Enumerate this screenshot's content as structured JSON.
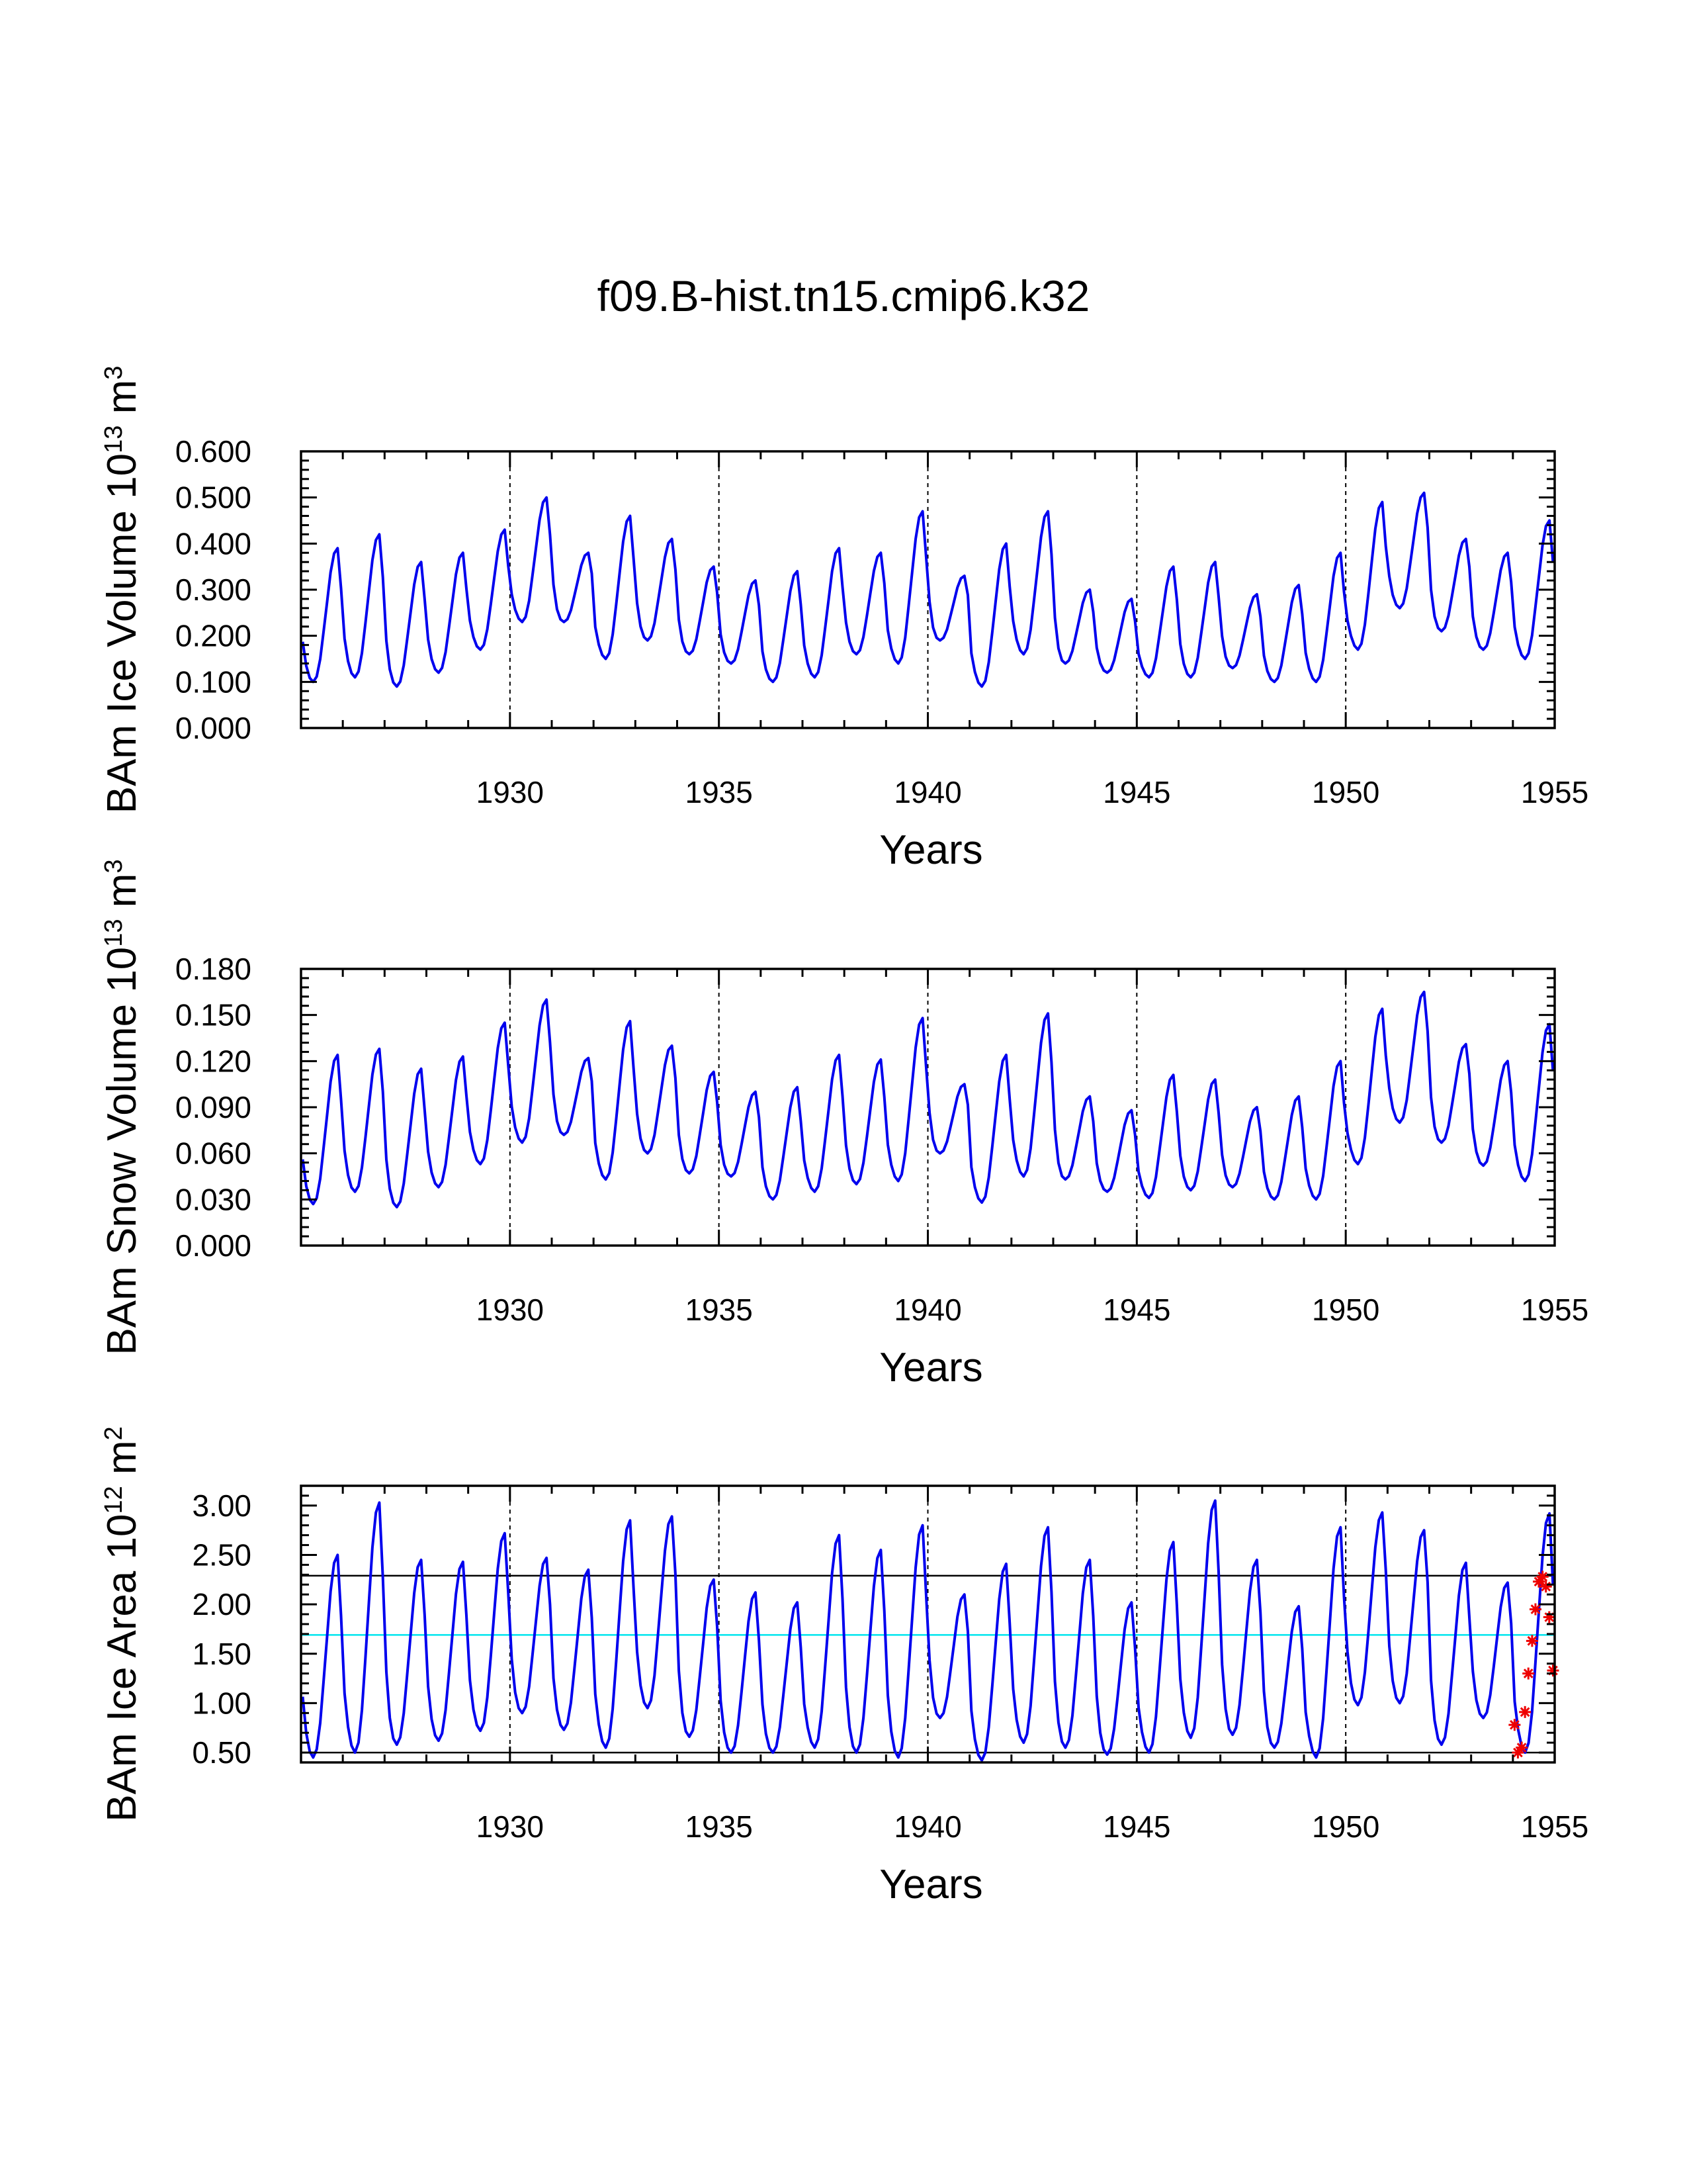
{
  "figure_title": "f09.B-hist.tn15.cmip6.k32",
  "colors": {
    "series": "#0000ee",
    "mean_line": "#00e5ee",
    "bound_line": "#000000",
    "marker": "#ee0000",
    "axis": "#000000"
  },
  "chart_data": [
    {
      "type": "line",
      "title": "",
      "ylabel": {
        "base": "BAm Ice Volume 10",
        "exp": "13",
        "unit": " m",
        "unit_exp": "3"
      },
      "xlabel": "Years",
      "xlim": [
        1925,
        1955
      ],
      "ylim": [
        0.0,
        0.6
      ],
      "yticks": [
        "0.000",
        "0.100",
        "0.200",
        "0.300",
        "0.400",
        "0.500",
        "0.600"
      ],
      "ytick_values": [
        0.0,
        0.1,
        0.2,
        0.3,
        0.4,
        0.5,
        0.6
      ],
      "xticks": [
        "1930",
        "1935",
        "1940",
        "1945",
        "1950",
        "1955"
      ],
      "xtick_values": [
        1930,
        1935,
        1940,
        1945,
        1950,
        1955
      ],
      "vlines": [
        1930,
        1935,
        1940,
        1945,
        1950
      ],
      "annual_min": [
        0.1,
        0.11,
        0.09,
        0.12,
        0.17,
        0.23,
        0.23,
        0.15,
        0.19,
        0.16,
        0.14,
        0.1,
        0.11,
        0.16,
        0.14,
        0.19,
        0.09,
        0.16,
        0.14,
        0.12,
        0.11,
        0.11,
        0.13,
        0.1,
        0.1,
        0.17,
        0.26,
        0.21,
        0.17,
        0.15
      ],
      "annual_max": [
        0.39,
        0.42,
        0.36,
        0.38,
        0.43,
        0.5,
        0.38,
        0.46,
        0.41,
        0.35,
        0.32,
        0.34,
        0.39,
        0.38,
        0.47,
        0.33,
        0.4,
        0.47,
        0.3,
        0.28,
        0.35,
        0.36,
        0.29,
        0.31,
        0.38,
        0.49,
        0.51,
        0.41,
        0.38,
        0.45
      ],
      "series": [
        {
          "name": "BAm Ice Volume",
          "color": "#0000ee"
        }
      ]
    },
    {
      "type": "line",
      "title": "",
      "ylabel": {
        "base": "BAm Snow Volume 10",
        "exp": "13",
        "unit": " m",
        "unit_exp": "3"
      },
      "xlabel": "Years",
      "xlim": [
        1925,
        1955
      ],
      "ylim": [
        0.0,
        0.18
      ],
      "yticks": [
        "0.000",
        "0.030",
        "0.060",
        "0.090",
        "0.120",
        "0.150",
        "0.180"
      ],
      "ytick_values": [
        0.0,
        0.03,
        0.06,
        0.09,
        0.12,
        0.15,
        0.18
      ],
      "xticks": [
        "1930",
        "1935",
        "1940",
        "1945",
        "1950",
        "1955"
      ],
      "xtick_values": [
        1930,
        1935,
        1940,
        1945,
        1950,
        1955
      ],
      "vlines": [
        1930,
        1935,
        1940,
        1945,
        1950
      ],
      "annual_min": [
        0.027,
        0.035,
        0.025,
        0.038,
        0.053,
        0.067,
        0.072,
        0.043,
        0.06,
        0.047,
        0.045,
        0.03,
        0.035,
        0.04,
        0.042,
        0.06,
        0.028,
        0.045,
        0.043,
        0.035,
        0.031,
        0.036,
        0.038,
        0.03,
        0.03,
        0.053,
        0.08,
        0.067,
        0.052,
        0.042
      ],
      "annual_max": [
        0.124,
        0.128,
        0.115,
        0.123,
        0.145,
        0.16,
        0.122,
        0.146,
        0.13,
        0.113,
        0.1,
        0.103,
        0.124,
        0.121,
        0.148,
        0.105,
        0.124,
        0.151,
        0.097,
        0.088,
        0.111,
        0.108,
        0.09,
        0.097,
        0.12,
        0.154,
        0.165,
        0.131,
        0.12,
        0.144
      ],
      "series": [
        {
          "name": "BAm Snow Volume",
          "color": "#0000ee"
        }
      ]
    },
    {
      "type": "line",
      "title": "",
      "ylabel": {
        "base": "BAm Ice Area 10",
        "exp": "12",
        "unit": " m",
        "unit_exp": "2"
      },
      "xlabel": "Years",
      "xlim": [
        1925,
        1955
      ],
      "ylim": [
        0.4,
        3.2
      ],
      "yticks": [
        "0.50",
        "1.00",
        "1.50",
        "2.00",
        "2.50",
        "3.00"
      ],
      "ytick_values": [
        0.5,
        1.0,
        1.5,
        2.0,
        2.5,
        3.0
      ],
      "xticks": [
        "1930",
        "1935",
        "1940",
        "1945",
        "1950",
        "1955"
      ],
      "xtick_values": [
        1930,
        1935,
        1940,
        1945,
        1950,
        1955
      ],
      "vlines": [
        1930,
        1935,
        1940,
        1945,
        1950
      ],
      "hlines": [
        {
          "y": 2.29,
          "kind": "upper"
        },
        {
          "y": 1.69,
          "kind": "mean"
        },
        {
          "y": 0.5,
          "kind": "lower"
        }
      ],
      "annual_min": [
        0.45,
        0.5,
        0.58,
        0.62,
        0.72,
        0.9,
        0.73,
        0.55,
        0.95,
        0.66,
        0.5,
        0.5,
        0.55,
        0.5,
        0.45,
        0.85,
        0.42,
        0.6,
        0.55,
        0.48,
        0.5,
        0.65,
        0.68,
        0.55,
        0.45,
        0.98,
        1.0,
        0.58,
        0.85,
        0.5
      ],
      "annual_max": [
        2.5,
        3.03,
        2.45,
        2.43,
        2.72,
        2.47,
        2.35,
        2.85,
        2.89,
        2.25,
        2.12,
        2.02,
        2.7,
        2.55,
        2.8,
        2.1,
        2.41,
        2.78,
        2.45,
        2.02,
        2.63,
        3.05,
        2.45,
        1.98,
        2.78,
        2.93,
        2.75,
        2.42,
        2.22,
        2.92
      ],
      "markers": [
        {
          "x": 1954.04,
          "y": 0.78
        },
        {
          "x": 1954.12,
          "y": 0.5
        },
        {
          "x": 1954.21,
          "y": 0.55
        },
        {
          "x": 1954.29,
          "y": 0.91
        },
        {
          "x": 1954.37,
          "y": 1.3
        },
        {
          "x": 1954.46,
          "y": 1.63
        },
        {
          "x": 1954.54,
          "y": 1.95
        },
        {
          "x": 1954.62,
          "y": 2.23
        },
        {
          "x": 1954.71,
          "y": 2.28
        },
        {
          "x": 1954.79,
          "y": 2.18
        },
        {
          "x": 1954.87,
          "y": 1.87
        },
        {
          "x": 1954.96,
          "y": 1.33
        }
      ],
      "series": [
        {
          "name": "BAm Ice Area",
          "color": "#0000ee"
        }
      ]
    }
  ]
}
